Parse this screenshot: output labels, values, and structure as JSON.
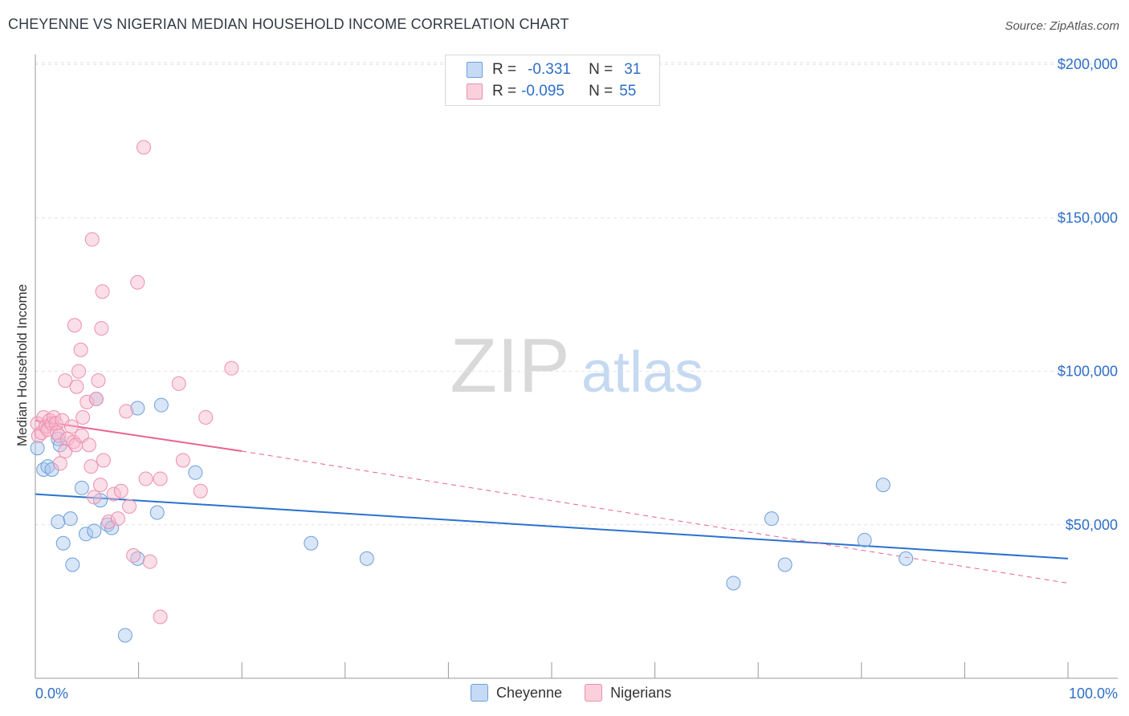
{
  "header": {
    "title": "CHEYENNE VS NIGERIAN MEDIAN HOUSEHOLD INCOME CORRELATION CHART",
    "source": "Source: ZipAtlas.com"
  },
  "legend": {
    "rows": [
      {
        "r_label": "R =",
        "r_value": "-0.331",
        "n_label": "N =",
        "n_value": "31"
      },
      {
        "r_label": "R =",
        "r_value": "-0.095",
        "n_label": "N =",
        "n_value": "55"
      }
    ]
  },
  "bottom_legend": [
    "Cheyenne",
    "Nigerians"
  ],
  "watermark": {
    "zip": "ZIP",
    "atlas": "atlas"
  },
  "colors": {
    "cheyenne_fill": "#a8c8f0",
    "cheyenne_stroke": "#6f9fd8",
    "cheyenne_line": "#2a72cf",
    "nigerians_fill": "#f7b8cb",
    "nigerians_stroke": "#ec8fae",
    "nigerians_line": "#e8638e",
    "axis_label": "#2f6fc7",
    "grid": "#e2e2e2"
  },
  "chart_data": {
    "type": "scatter",
    "title": "CHEYENNE VS NIGERIAN MEDIAN HOUSEHOLD INCOME CORRELATION CHART",
    "xlabel": "",
    "ylabel": "Median Household Income",
    "xlim": [
      0,
      100
    ],
    "ylim": [
      0,
      210000
    ],
    "x_tick_labels": [
      "0.0%",
      "100.0%"
    ],
    "y_ticks": [
      50000,
      100000,
      150000,
      200000
    ],
    "y_tick_labels": [
      "$50,000",
      "$100,000",
      "$150,000",
      "$200,000"
    ],
    "series": [
      {
        "name": "Cheyenne",
        "r": -0.331,
        "n": 31,
        "trend": {
          "x": [
            0,
            100
          ],
          "y": [
            60000,
            39000
          ]
        },
        "points": [
          [
            0.2,
            75000
          ],
          [
            0.8,
            68000
          ],
          [
            1.2,
            69000
          ],
          [
            1.6,
            68000
          ],
          [
            2.2,
            78000
          ],
          [
            2.4,
            76000
          ],
          [
            2.2,
            51000
          ],
          [
            2.7,
            44000
          ],
          [
            3.4,
            52000
          ],
          [
            3.6,
            37000
          ],
          [
            4.5,
            62000
          ],
          [
            4.9,
            47000
          ],
          [
            5.7,
            48000
          ],
          [
            5.9,
            91000
          ],
          [
            6.3,
            58000
          ],
          [
            7.0,
            50000
          ],
          [
            7.4,
            49000
          ],
          [
            8.7,
            14000
          ],
          [
            9.9,
            88000
          ],
          [
            9.9,
            39000
          ],
          [
            11.8,
            54000
          ],
          [
            12.2,
            89000
          ],
          [
            15.5,
            67000
          ],
          [
            26.7,
            44000
          ],
          [
            32.1,
            39000
          ],
          [
            67.6,
            31000
          ],
          [
            71.3,
            52000
          ],
          [
            72.6,
            37000
          ],
          [
            80.3,
            45000
          ],
          [
            82.1,
            63000
          ],
          [
            84.3,
            39000
          ]
        ]
      },
      {
        "name": "Nigerians",
        "r": -0.095,
        "n": 55,
        "trend_solid": {
          "x": [
            0,
            20
          ],
          "y": [
            84000,
            74000
          ]
        },
        "trend_dashed": {
          "x": [
            20,
            100
          ],
          "y": [
            74000,
            31000
          ]
        },
        "points": [
          [
            0.2,
            83000
          ],
          [
            0.3,
            79000
          ],
          [
            0.6,
            80000
          ],
          [
            0.8,
            85000
          ],
          [
            1.0,
            82000
          ],
          [
            1.2,
            81000
          ],
          [
            1.4,
            84000
          ],
          [
            1.6,
            83000
          ],
          [
            1.8,
            85000
          ],
          [
            2.0,
            83000
          ],
          [
            2.1,
            80000
          ],
          [
            2.3,
            79000
          ],
          [
            2.6,
            84000
          ],
          [
            2.4,
            70000
          ],
          [
            2.9,
            74000
          ],
          [
            2.9,
            97000
          ],
          [
            3.1,
            78000
          ],
          [
            3.5,
            82000
          ],
          [
            3.7,
            77000
          ],
          [
            3.9,
            76000
          ],
          [
            3.8,
            115000
          ],
          [
            4.0,
            95000
          ],
          [
            4.2,
            100000
          ],
          [
            4.4,
            107000
          ],
          [
            4.5,
            79000
          ],
          [
            4.6,
            85000
          ],
          [
            5.0,
            90000
          ],
          [
            5.4,
            69000
          ],
          [
            5.5,
            143000
          ],
          [
            5.7,
            59000
          ],
          [
            5.9,
            91000
          ],
          [
            6.1,
            97000
          ],
          [
            6.3,
            63000
          ],
          [
            6.4,
            114000
          ],
          [
            6.5,
            126000
          ],
          [
            6.6,
            71000
          ],
          [
            7.1,
            51000
          ],
          [
            7.6,
            60000
          ],
          [
            8.0,
            52000
          ],
          [
            8.3,
            61000
          ],
          [
            8.8,
            87000
          ],
          [
            9.1,
            56000
          ],
          [
            9.5,
            40000
          ],
          [
            9.9,
            129000
          ],
          [
            10.5,
            173000
          ],
          [
            10.7,
            65000
          ],
          [
            11.1,
            38000
          ],
          [
            12.1,
            20000
          ],
          [
            12.1,
            65000
          ],
          [
            13.9,
            96000
          ],
          [
            14.3,
            71000
          ],
          [
            16.0,
            61000
          ],
          [
            16.5,
            85000
          ],
          [
            19.0,
            101000
          ],
          [
            5.2,
            76000
          ]
        ]
      }
    ]
  }
}
